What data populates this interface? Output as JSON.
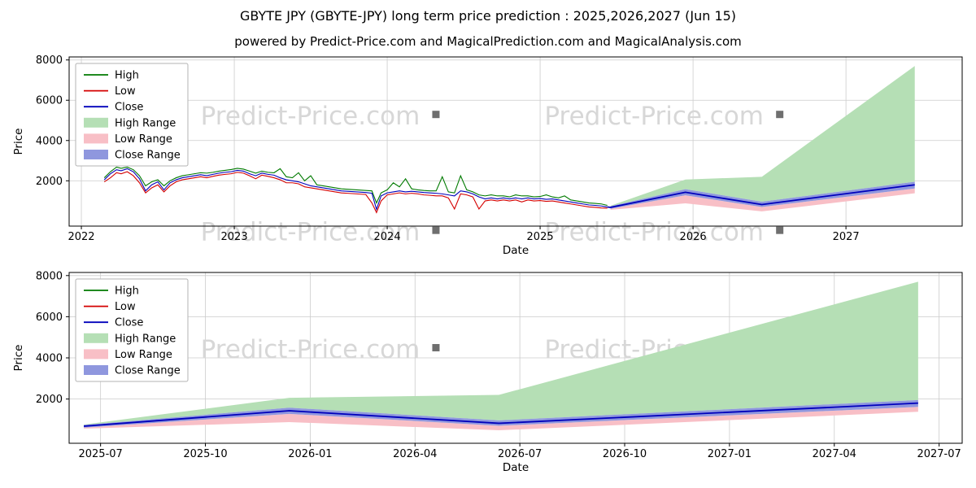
{
  "title": "GBYTE JPY (GBYTE-JPY) long term price prediction : 2025,2026,2027 (Jun 15)",
  "subtitle": "powered by Predict-Price.com and MagicalPrediction.com and MagicalAnalysis.com",
  "watermark": "Predict-Price.com",
  "colors": {
    "high": "#007a00",
    "low": "#d40000",
    "close": "#0000bb",
    "high_range": "#b5dfb5",
    "low_range": "#f8bfc6",
    "close_range": "#8f97de",
    "grid": "#cccccc",
    "watermark": "#d7d7d7",
    "watermark_box": "#6f6f6f",
    "axis": "#000000",
    "legend_border": "#b3b3b3"
  },
  "legend": [
    {
      "label": "High",
      "type": "line",
      "color": "high"
    },
    {
      "label": "Low",
      "type": "line",
      "color": "low"
    },
    {
      "label": "Close",
      "type": "line",
      "color": "close"
    },
    {
      "label": "High Range",
      "type": "patch",
      "color": "high_range"
    },
    {
      "label": "Low Range",
      "type": "patch",
      "color": "low_range"
    },
    {
      "label": "Close Range",
      "type": "patch",
      "color": "close_range"
    }
  ],
  "chart_data": [
    {
      "type": "line",
      "title": "",
      "xlabel": "Date",
      "ylabel": "Price",
      "xlim": [
        2021.92,
        2027.76
      ],
      "ylim": [
        -250,
        8150
      ],
      "grid": true,
      "legend_position": "upper-left",
      "yticks": [
        2000,
        4000,
        6000,
        8000
      ],
      "xticks": [
        {
          "v": 2022,
          "label": "2022"
        },
        {
          "v": 2023,
          "label": "2023"
        },
        {
          "v": 2024,
          "label": "2024"
        },
        {
          "v": 2025,
          "label": "2025"
        },
        {
          "v": 2026,
          "label": "2026"
        },
        {
          "v": 2027,
          "label": "2027"
        }
      ],
      "watermarks": [
        [
          0.27,
          0.4
        ],
        [
          0.655,
          0.4
        ],
        [
          0.27,
          1.085
        ],
        [
          0.655,
          1.085
        ]
      ],
      "history_columns": [
        "x",
        "high",
        "low",
        "close"
      ],
      "history": [
        [
          2022.15,
          2150,
          1950,
          2050
        ],
        [
          2022.19,
          2450,
          2150,
          2350
        ],
        [
          2022.23,
          2680,
          2400,
          2550
        ],
        [
          2022.26,
          2620,
          2350,
          2500
        ],
        [
          2022.3,
          2680,
          2450,
          2600
        ],
        [
          2022.34,
          2550,
          2250,
          2450
        ],
        [
          2022.38,
          2250,
          1900,
          2100
        ],
        [
          2022.42,
          1750,
          1400,
          1500
        ],
        [
          2022.46,
          1950,
          1650,
          1800
        ],
        [
          2022.5,
          2050,
          1800,
          1950
        ],
        [
          2022.54,
          1750,
          1450,
          1550
        ],
        [
          2022.58,
          2000,
          1750,
          1900
        ],
        [
          2022.62,
          2150,
          1950,
          2050
        ],
        [
          2022.66,
          2250,
          2050,
          2150
        ],
        [
          2022.7,
          2300,
          2100,
          2200
        ],
        [
          2022.74,
          2350,
          2150,
          2250
        ],
        [
          2022.78,
          2400,
          2200,
          2300
        ],
        [
          2022.82,
          2380,
          2150,
          2250
        ],
        [
          2022.86,
          2420,
          2220,
          2320
        ],
        [
          2022.9,
          2480,
          2280,
          2380
        ],
        [
          2022.94,
          2520,
          2320,
          2420
        ],
        [
          2022.98,
          2560,
          2350,
          2450
        ],
        [
          2023.02,
          2620,
          2420,
          2520
        ],
        [
          2023.06,
          2580,
          2380,
          2480
        ],
        [
          2023.1,
          2480,
          2250,
          2350
        ],
        [
          2023.14,
          2380,
          2100,
          2250
        ],
        [
          2023.18,
          2480,
          2280,
          2380
        ],
        [
          2023.22,
          2420,
          2220,
          2320
        ],
        [
          2023.26,
          2400,
          2150,
          2280
        ],
        [
          2023.3,
          2600,
          2050,
          2150
        ],
        [
          2023.34,
          2200,
          1900,
          2050
        ],
        [
          2023.38,
          2150,
          1900,
          2000
        ],
        [
          2023.42,
          2400,
          1850,
          1950
        ],
        [
          2023.46,
          2000,
          1700,
          1850
        ],
        [
          2023.5,
          2250,
          1650,
          1750
        ],
        [
          2023.54,
          1800,
          1600,
          1700
        ],
        [
          2023.58,
          1750,
          1550,
          1650
        ],
        [
          2023.62,
          1700,
          1500,
          1600
        ],
        [
          2023.66,
          1650,
          1450,
          1550
        ],
        [
          2023.7,
          1600,
          1400,
          1500
        ],
        [
          2023.74,
          1580,
          1380,
          1480
        ],
        [
          2023.78,
          1560,
          1360,
          1460
        ],
        [
          2023.82,
          1540,
          1340,
          1440
        ],
        [
          2023.86,
          1520,
          1320,
          1420
        ],
        [
          2023.9,
          1500,
          900,
          1380
        ],
        [
          2023.93,
          900,
          420,
          580
        ],
        [
          2023.96,
          1400,
          1000,
          1250
        ],
        [
          2024.0,
          1550,
          1300,
          1400
        ],
        [
          2024.04,
          1900,
          1350,
          1450
        ],
        [
          2024.08,
          1700,
          1400,
          1500
        ],
        [
          2024.12,
          2100,
          1350,
          1450
        ],
        [
          2024.16,
          1600,
          1380,
          1480
        ],
        [
          2024.2,
          1550,
          1350,
          1450
        ],
        [
          2024.24,
          1520,
          1300,
          1420
        ],
        [
          2024.28,
          1500,
          1280,
          1400
        ],
        [
          2024.32,
          1500,
          1250,
          1380
        ],
        [
          2024.36,
          2200,
          1250,
          1350
        ],
        [
          2024.4,
          1450,
          1150,
          1300
        ],
        [
          2024.44,
          1400,
          600,
          1250
        ],
        [
          2024.48,
          2250,
          1350,
          1500
        ],
        [
          2024.52,
          1550,
          1300,
          1450
        ],
        [
          2024.56,
          1450,
          1200,
          1350
        ],
        [
          2024.6,
          1300,
          600,
          1200
        ],
        [
          2024.64,
          1250,
          1000,
          1100
        ],
        [
          2024.68,
          1300,
          1050,
          1150
        ],
        [
          2024.72,
          1250,
          1000,
          1100
        ],
        [
          2024.76,
          1250,
          1050,
          1150
        ],
        [
          2024.8,
          1200,
          1000,
          1100
        ],
        [
          2024.84,
          1300,
          1050,
          1150
        ],
        [
          2024.88,
          1250,
          950,
          1100
        ],
        [
          2024.92,
          1250,
          1050,
          1150
        ],
        [
          2024.96,
          1200,
          1000,
          1100
        ],
        [
          2025.0,
          1220,
          1020,
          1120
        ],
        [
          2025.04,
          1300,
          980,
          1080
        ],
        [
          2025.08,
          1200,
          1000,
          1100
        ],
        [
          2025.12,
          1150,
          950,
          1050
        ],
        [
          2025.16,
          1250,
          900,
          1000
        ],
        [
          2025.2,
          1050,
          850,
          950
        ],
        [
          2025.24,
          1000,
          800,
          900
        ],
        [
          2025.28,
          950,
          750,
          850
        ],
        [
          2025.32,
          900,
          700,
          800
        ],
        [
          2025.36,
          880,
          680,
          780
        ],
        [
          2025.4,
          850,
          650,
          750
        ],
        [
          2025.44,
          780,
          640,
          700
        ]
      ],
      "prediction_columns": [
        "x",
        "close",
        "close_lo",
        "close_hi",
        "low_lo",
        "high_hi"
      ],
      "prediction": [
        [
          2025.46,
          680,
          610,
          740,
          560,
          760
        ],
        [
          2025.95,
          1430,
          1280,
          1580,
          880,
          2060
        ],
        [
          2026.45,
          820,
          700,
          960,
          480,
          2200
        ],
        [
          2027.45,
          1800,
          1620,
          1950,
          1380,
          7700
        ]
      ]
    },
    {
      "type": "line",
      "title": "",
      "xlabel": "Date",
      "ylabel": "Price",
      "xlim": [
        2025.425,
        2027.555
      ],
      "ylim": [
        -150,
        8150
      ],
      "grid": true,
      "legend_position": "upper-left",
      "yticks": [
        2000,
        4000,
        6000,
        8000
      ],
      "xticks": [
        {
          "v": 2025.5,
          "label": "2025-07"
        },
        {
          "v": 2025.75,
          "label": "2025-10"
        },
        {
          "v": 2026.0,
          "label": "2026-01"
        },
        {
          "v": 2026.25,
          "label": "2026-04"
        },
        {
          "v": 2026.5,
          "label": "2026-07"
        },
        {
          "v": 2026.75,
          "label": "2026-10"
        },
        {
          "v": 2027.0,
          "label": "2027-01"
        },
        {
          "v": 2027.25,
          "label": "2027-04"
        },
        {
          "v": 2027.5,
          "label": "2027-07"
        }
      ],
      "watermarks": [
        [
          0.27,
          0.5
        ],
        [
          0.655,
          0.5
        ]
      ],
      "history_columns": [
        "x",
        "high",
        "low",
        "close"
      ],
      "history": [],
      "prediction_columns": [
        "x",
        "close",
        "close_lo",
        "close_hi",
        "low_lo",
        "high_hi"
      ],
      "prediction": [
        [
          2025.46,
          680,
          610,
          740,
          560,
          760
        ],
        [
          2025.95,
          1430,
          1280,
          1580,
          880,
          2060
        ],
        [
          2026.45,
          820,
          700,
          960,
          480,
          2200
        ],
        [
          2027.45,
          1800,
          1620,
          1950,
          1380,
          7700
        ]
      ]
    }
  ]
}
